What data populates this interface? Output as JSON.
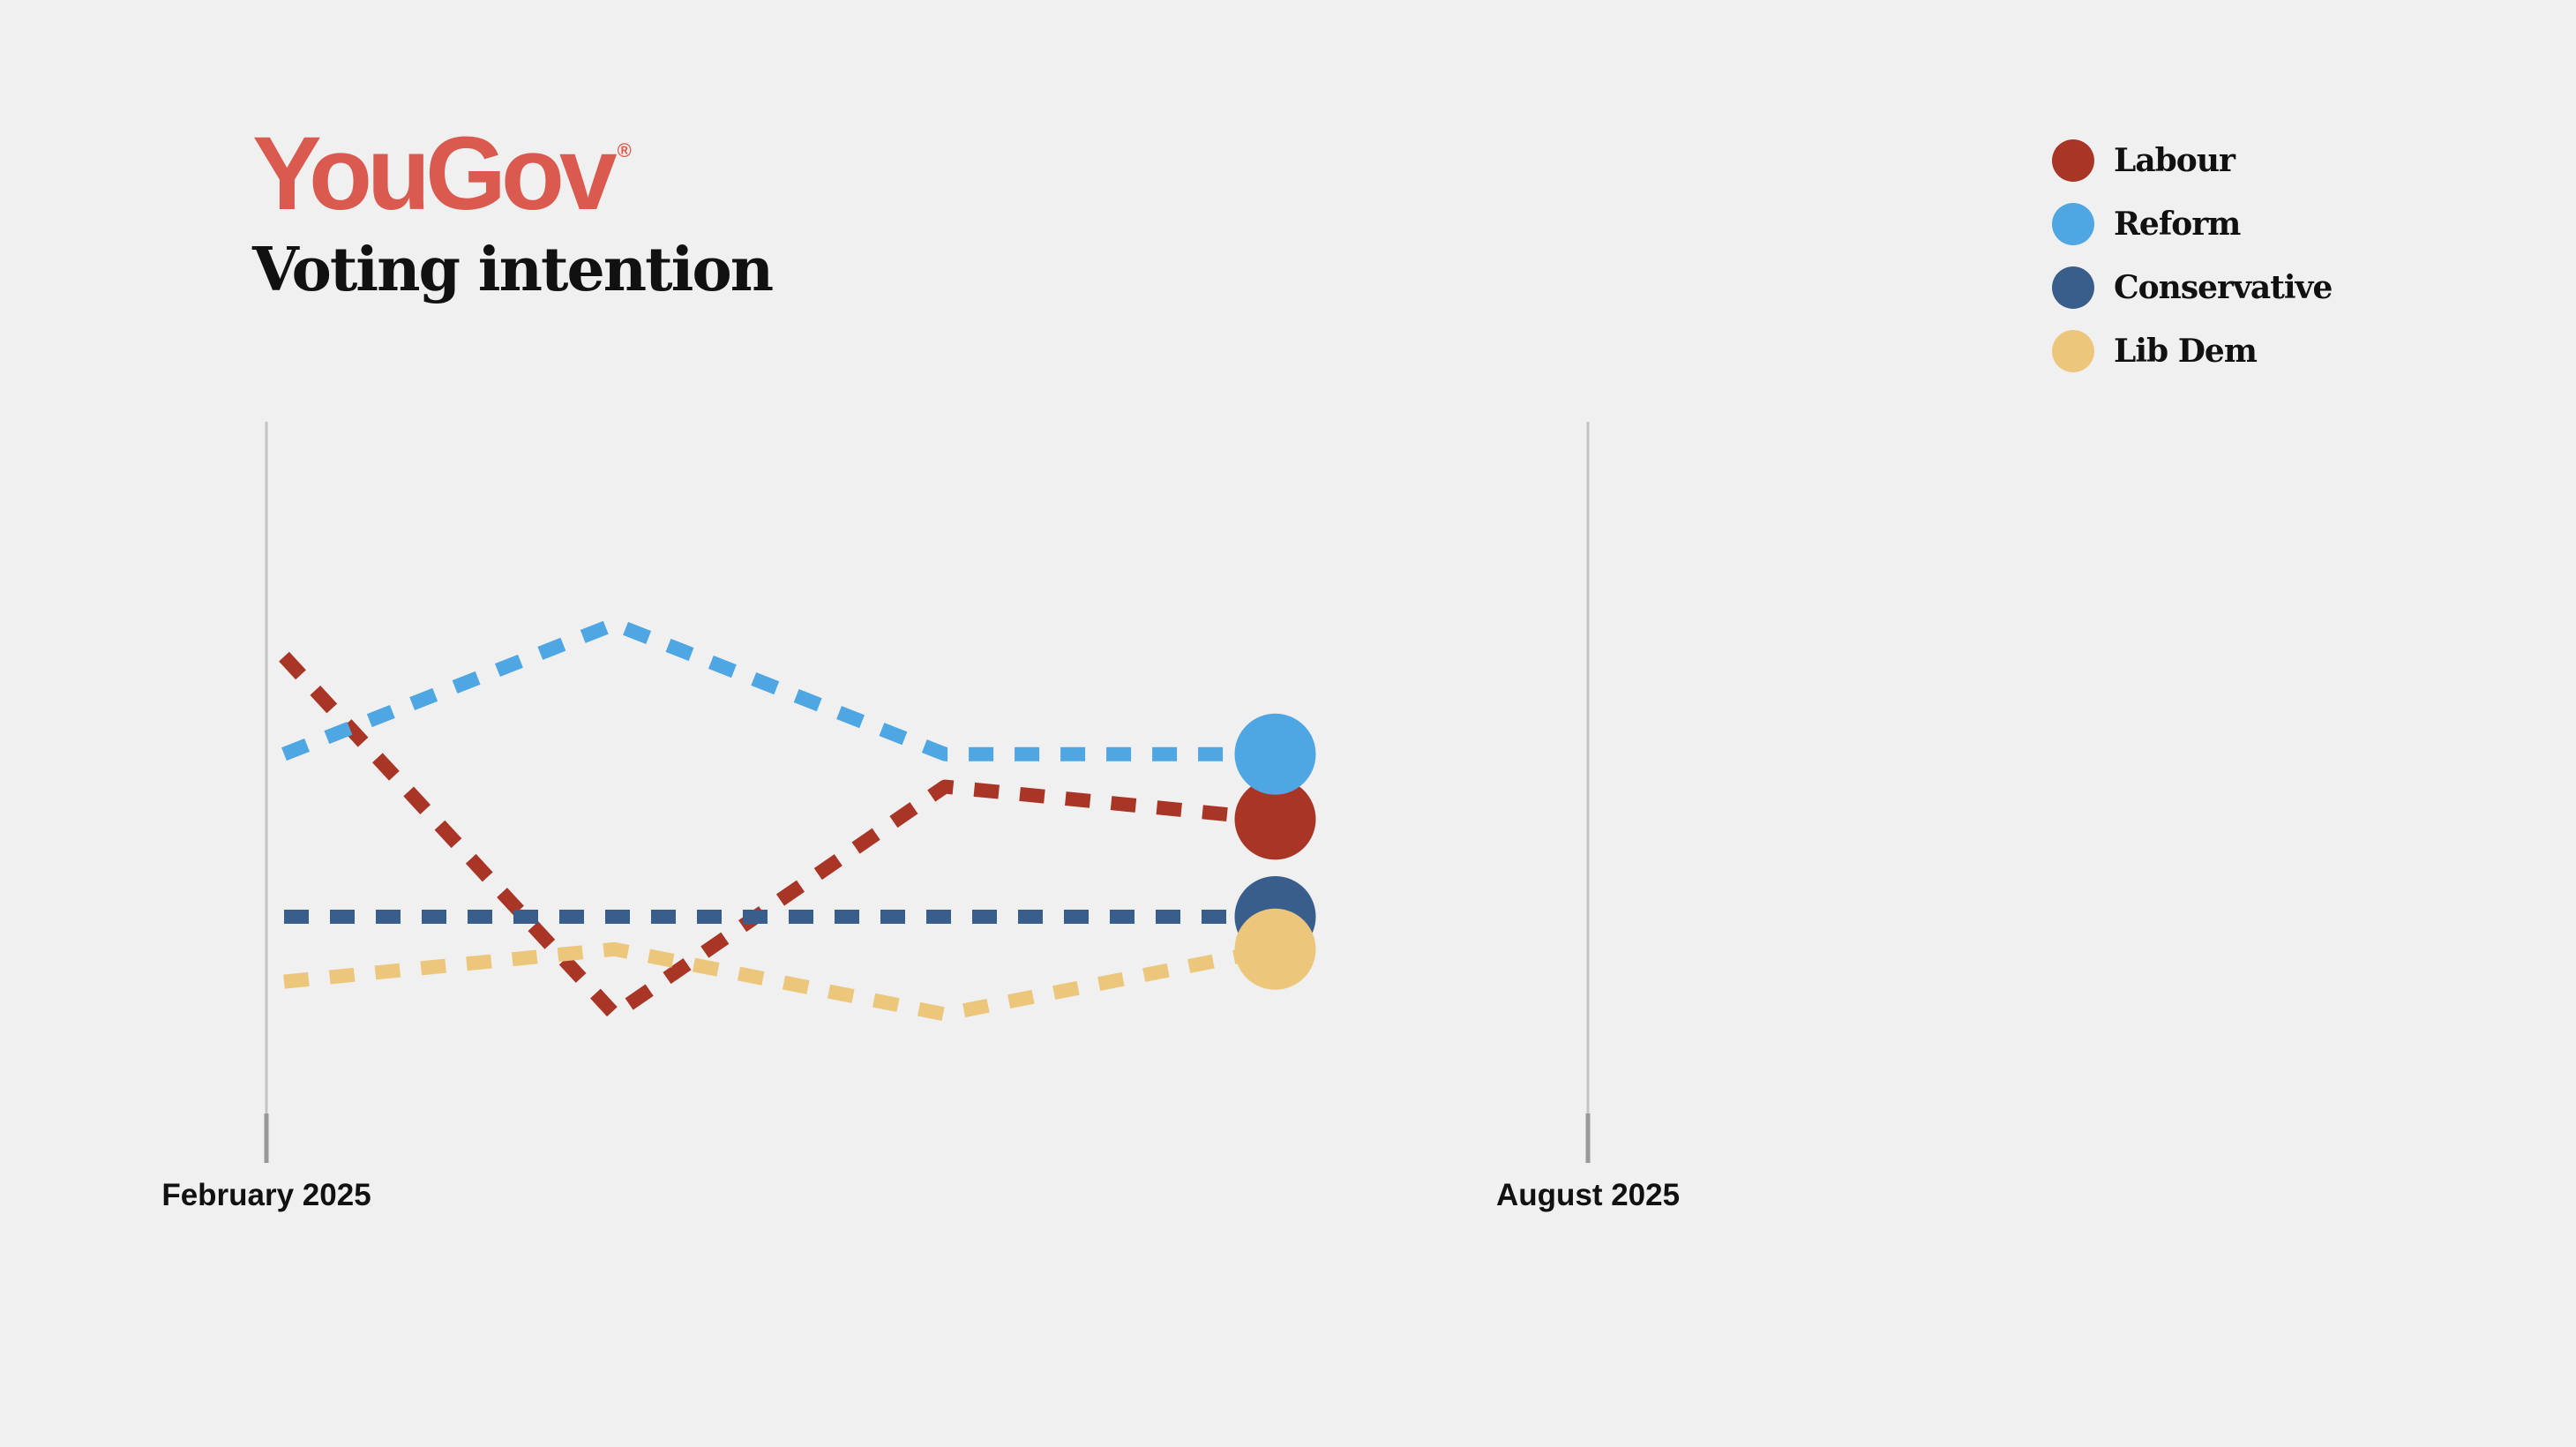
{
  "header": {
    "brand": "YouGov",
    "brand_mark": "®",
    "title": "Voting intention"
  },
  "chart_data": {
    "type": "line",
    "title": "Voting intention",
    "xlabel": "",
    "ylabel": "",
    "x_ticks": [
      "February 2025",
      "August 2025"
    ],
    "x": [
      0,
      1,
      2,
      3
    ],
    "xlim": [
      0,
      4
    ],
    "ylim": [
      11,
      30
    ],
    "grid": false,
    "legend_position": "top-right",
    "series": [
      {
        "name": "Labour",
        "color": "#a93527",
        "values": [
          25,
          14,
          21,
          20
        ]
      },
      {
        "name": "Reform",
        "color": "#4ea6e2",
        "values": [
          22,
          26,
          22,
          22
        ]
      },
      {
        "name": "Conservative",
        "color": "#3a5e8c",
        "values": [
          17,
          17,
          17,
          17
        ]
      },
      {
        "name": "Lib Dem",
        "color": "#ecc77b",
        "values": [
          15,
          16,
          14,
          16
        ]
      }
    ]
  }
}
